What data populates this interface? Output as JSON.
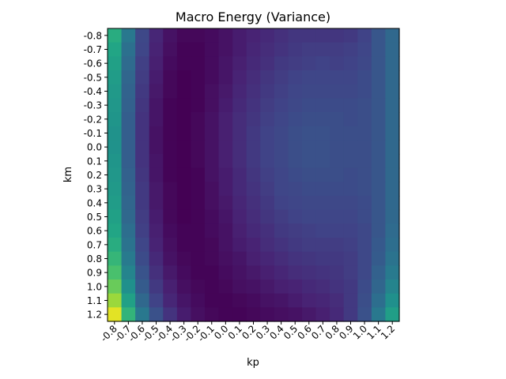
{
  "chart_data": {
    "type": "heatmap",
    "title": "Macro Energy (Variance)",
    "xlabel": "kp",
    "ylabel": "km",
    "x_ticks": [
      "-0.8",
      "-0.7",
      "-0.6",
      "-0.5",
      "-0.4",
      "-0.3",
      "-0.2",
      "-0.1",
      "0.0",
      "0.1",
      "0.2",
      "0.3",
      "0.4",
      "0.5",
      "0.6",
      "0.7",
      "0.8",
      "0.9",
      "1.0",
      "1.1",
      "1.2"
    ],
    "y_ticks": [
      "-0.8",
      "-0.7",
      "-0.6",
      "-0.5",
      "-0.4",
      "-0.3",
      "-0.2",
      "-0.1",
      "0.0",
      "0.1",
      "0.2",
      "0.3",
      "0.4",
      "0.5",
      "0.6",
      "0.7",
      "0.8",
      "0.9",
      "1.0",
      "1.1",
      "1.2"
    ],
    "colormap": "viridis",
    "value_range": [
      0,
      1
    ],
    "grid": false,
    "colorbar": false,
    "values": [
      [
        0.62,
        0.4,
        0.22,
        0.11,
        0.05,
        0.02,
        0.02,
        0.03,
        0.05,
        0.08,
        0.1,
        0.12,
        0.14,
        0.16,
        0.16,
        0.16,
        0.16,
        0.17,
        0.2,
        0.27,
        0.34
      ],
      [
        0.59,
        0.37,
        0.21,
        0.1,
        0.04,
        0.01,
        0.01,
        0.03,
        0.05,
        0.08,
        0.11,
        0.13,
        0.15,
        0.17,
        0.18,
        0.18,
        0.18,
        0.19,
        0.21,
        0.27,
        0.34
      ],
      [
        0.57,
        0.35,
        0.19,
        0.09,
        0.03,
        0.01,
        0.01,
        0.03,
        0.06,
        0.09,
        0.12,
        0.14,
        0.17,
        0.18,
        0.19,
        0.2,
        0.19,
        0.2,
        0.22,
        0.27,
        0.34
      ],
      [
        0.55,
        0.33,
        0.18,
        0.08,
        0.02,
        0.0,
        0.01,
        0.03,
        0.06,
        0.1,
        0.13,
        0.16,
        0.18,
        0.2,
        0.21,
        0.21,
        0.21,
        0.21,
        0.23,
        0.27,
        0.34
      ],
      [
        0.54,
        0.32,
        0.17,
        0.07,
        0.02,
        0.0,
        0.01,
        0.04,
        0.07,
        0.11,
        0.14,
        0.17,
        0.19,
        0.21,
        0.22,
        0.22,
        0.22,
        0.22,
        0.23,
        0.27,
        0.34
      ],
      [
        0.53,
        0.31,
        0.16,
        0.06,
        0.01,
        0.0,
        0.01,
        0.04,
        0.08,
        0.12,
        0.15,
        0.18,
        0.2,
        0.22,
        0.23,
        0.23,
        0.23,
        0.23,
        0.24,
        0.27,
        0.34
      ],
      [
        0.52,
        0.3,
        0.15,
        0.06,
        0.01,
        0.0,
        0.02,
        0.05,
        0.09,
        0.13,
        0.16,
        0.19,
        0.21,
        0.23,
        0.24,
        0.24,
        0.24,
        0.23,
        0.24,
        0.27,
        0.34
      ],
      [
        0.51,
        0.3,
        0.15,
        0.05,
        0.01,
        0.0,
        0.02,
        0.05,
        0.09,
        0.13,
        0.17,
        0.2,
        0.22,
        0.24,
        0.25,
        0.25,
        0.24,
        0.24,
        0.24,
        0.27,
        0.34
      ],
      [
        0.51,
        0.3,
        0.15,
        0.05,
        0.01,
        0.0,
        0.02,
        0.05,
        0.09,
        0.13,
        0.17,
        0.2,
        0.22,
        0.24,
        0.25,
        0.25,
        0.24,
        0.24,
        0.24,
        0.27,
        0.34
      ],
      [
        0.52,
        0.3,
        0.15,
        0.06,
        0.01,
        0.0,
        0.02,
        0.05,
        0.09,
        0.13,
        0.17,
        0.2,
        0.22,
        0.24,
        0.25,
        0.25,
        0.24,
        0.24,
        0.24,
        0.27,
        0.34
      ],
      [
        0.53,
        0.31,
        0.16,
        0.06,
        0.01,
        0.0,
        0.01,
        0.05,
        0.08,
        0.12,
        0.16,
        0.19,
        0.21,
        0.23,
        0.24,
        0.24,
        0.24,
        0.23,
        0.24,
        0.27,
        0.34
      ],
      [
        0.54,
        0.32,
        0.17,
        0.07,
        0.02,
        0.0,
        0.01,
        0.04,
        0.08,
        0.12,
        0.15,
        0.18,
        0.21,
        0.22,
        0.23,
        0.23,
        0.23,
        0.23,
        0.24,
        0.27,
        0.34
      ],
      [
        0.55,
        0.33,
        0.17,
        0.07,
        0.02,
        0.0,
        0.01,
        0.04,
        0.07,
        0.11,
        0.14,
        0.17,
        0.2,
        0.21,
        0.22,
        0.22,
        0.22,
        0.22,
        0.23,
        0.27,
        0.34
      ],
      [
        0.57,
        0.34,
        0.18,
        0.08,
        0.02,
        0.0,
        0.01,
        0.03,
        0.06,
        0.1,
        0.13,
        0.16,
        0.18,
        0.2,
        0.21,
        0.21,
        0.21,
        0.21,
        0.23,
        0.27,
        0.34
      ],
      [
        0.59,
        0.36,
        0.19,
        0.09,
        0.03,
        0.01,
        0.01,
        0.03,
        0.05,
        0.09,
        0.12,
        0.14,
        0.17,
        0.18,
        0.19,
        0.2,
        0.2,
        0.2,
        0.22,
        0.27,
        0.35
      ],
      [
        0.62,
        0.38,
        0.21,
        0.1,
        0.04,
        0.01,
        0.01,
        0.02,
        0.05,
        0.08,
        0.1,
        0.13,
        0.15,
        0.17,
        0.18,
        0.18,
        0.18,
        0.19,
        0.22,
        0.28,
        0.36
      ],
      [
        0.66,
        0.41,
        0.23,
        0.12,
        0.05,
        0.02,
        0.01,
        0.02,
        0.04,
        0.06,
        0.09,
        0.11,
        0.13,
        0.15,
        0.16,
        0.17,
        0.17,
        0.18,
        0.22,
        0.29,
        0.38
      ],
      [
        0.71,
        0.45,
        0.26,
        0.14,
        0.07,
        0.03,
        0.01,
        0.01,
        0.03,
        0.05,
        0.07,
        0.09,
        0.11,
        0.13,
        0.14,
        0.15,
        0.16,
        0.18,
        0.22,
        0.31,
        0.41
      ],
      [
        0.77,
        0.5,
        0.29,
        0.17,
        0.09,
        0.04,
        0.02,
        0.01,
        0.02,
        0.04,
        0.05,
        0.07,
        0.09,
        0.1,
        0.12,
        0.13,
        0.15,
        0.17,
        0.23,
        0.33,
        0.45
      ],
      [
        0.85,
        0.57,
        0.34,
        0.2,
        0.11,
        0.06,
        0.03,
        0.01,
        0.01,
        0.02,
        0.03,
        0.05,
        0.06,
        0.08,
        0.1,
        0.11,
        0.13,
        0.17,
        0.24,
        0.36,
        0.5
      ],
      [
        0.96,
        0.65,
        0.4,
        0.25,
        0.15,
        0.08,
        0.04,
        0.02,
        0.01,
        0.01,
        0.02,
        0.03,
        0.04,
        0.05,
        0.07,
        0.09,
        0.12,
        0.17,
        0.25,
        0.4,
        0.56
      ]
    ]
  }
}
